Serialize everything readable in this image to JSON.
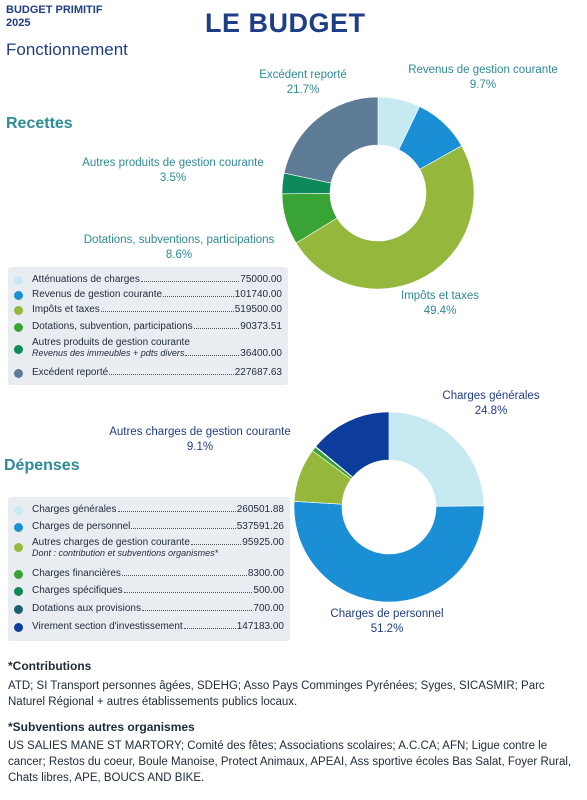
{
  "header": {
    "top_left": "BUDGET PRIMITIF\n2025",
    "subtitle": "Fonctionnement",
    "title": "LE BUDGET"
  },
  "colors": {
    "light_cyan": "#c7e9f2",
    "blue": "#1a8fd6",
    "olive_green": "#95b83c",
    "green": "#3aa335",
    "teal_green": "#0c8a5a",
    "slate": "#5f7c96",
    "dark_teal": "#1f5e6e",
    "navy": "#0c3c9c",
    "section_title": "#2e8b97"
  },
  "recettes": {
    "title": "Recettes",
    "labels": {
      "excedent": [
        "Excédent reporté",
        "21.7%"
      ],
      "revenus": [
        "Revenus de gestion courante",
        "9.7%"
      ],
      "autres": [
        "Autres produits de gestion courante",
        "3.5%"
      ],
      "dotations": [
        "Dotations, subventions, participations",
        "8.6%"
      ],
      "impots": [
        "Impôts et taxes",
        "49.4%"
      ]
    },
    "legend": [
      {
        "label": "Atténuations de charges",
        "sub": "",
        "value": "75000.00",
        "color": "#c7e9f2"
      },
      {
        "label": "Revenus de gestion courante",
        "sub": "",
        "value": "101740.00",
        "color": "#1a8fd6"
      },
      {
        "label": "Impôts et taxes",
        "sub": "",
        "value": "519500.00",
        "color": "#95b83c"
      },
      {
        "label": "Dotations, subvention, participations",
        "sub": "",
        "value": "90373.51",
        "color": "#3aa335"
      },
      {
        "label": "Autres produits de gestion courante",
        "sub": "Revenus des immeubles + pdts divers",
        "value": "36400.00",
        "color": "#0c8a5a"
      },
      {
        "label": "Excédent reporté",
        "sub": "",
        "value": "227687.63",
        "color": "#5f7c96"
      }
    ]
  },
  "depenses": {
    "title": "Dépenses",
    "labels": {
      "generales": [
        "Charges générales",
        "24.8%"
      ],
      "autres": [
        "Autres charges de gestion courante",
        "9.1%"
      ],
      "personnel": [
        "Charges de personnel",
        "51.2%"
      ]
    },
    "legend": [
      {
        "label": "Charges générales",
        "sub": "",
        "value": "260501.88",
        "color": "#c7e9f2"
      },
      {
        "label": "Charges de personnel",
        "sub": "",
        "value": "537591.26",
        "color": "#1a8fd6"
      },
      {
        "label": "Autres charges de gestion courante",
        "sub": "Dont : contribution et subventions organismes*",
        "value": "95925.00",
        "color": "#95b83c"
      },
      {
        "label": "Charges financières",
        "sub": "",
        "value": "8300.00",
        "color": "#3aa335"
      },
      {
        "label": "Charges spécifiques",
        "sub": "",
        "value": "500.00",
        "color": "#0c8a5a"
      },
      {
        "label": "Dotations aux provisions",
        "sub": "",
        "value": "700.00",
        "color": "#1f5e6e"
      },
      {
        "label": "Virement section d'investissement",
        "sub": "",
        "value": "147183.00",
        "color": "#0c3c9c"
      }
    ]
  },
  "chart_data": [
    {
      "type": "pie",
      "title": "Recettes",
      "categories": [
        "Atténuations de charges",
        "Revenus de gestion courante",
        "Impôts et taxes",
        "Dotations, subvention, participations",
        "Autres produits de gestion courante",
        "Excédent reporté"
      ],
      "values": [
        75000.0,
        101740.0,
        519500.0,
        90373.51,
        36400.0,
        227687.63
      ],
      "colors": [
        "#c7e9f2",
        "#1a8fd6",
        "#95b83c",
        "#3aa335",
        "#0c8a5a",
        "#5f7c96"
      ],
      "donut": true
    },
    {
      "type": "pie",
      "title": "Dépenses",
      "categories": [
        "Charges générales",
        "Charges de personnel",
        "Autres charges de gestion courante",
        "Charges financières",
        "Charges spécifiques",
        "Dotations aux provisions",
        "Virement section d'investissement"
      ],
      "values": [
        260501.88,
        537591.26,
        95925.0,
        8300.0,
        500.0,
        700.0,
        147183.0
      ],
      "colors": [
        "#c7e9f2",
        "#1a8fd6",
        "#95b83c",
        "#3aa335",
        "#0c8a5a",
        "#1f5e6e",
        "#0c3c9c"
      ],
      "donut": true
    }
  ],
  "footer": {
    "contrib_title": "*Contributions",
    "contrib_text": "ATD; SI Transport personnes âgées, SDEHG; Asso Pays Comminges Pyrénées; Syges, SICASMIR; Parc Naturel Régional + autres établissements publics locaux.",
    "subv_title": "*Subventions autres organismes",
    "subv_text": "US SALIES MANE ST MARTORY; Comité des fêtes; Associations scolaires; A.C.CA; AFN; Ligue contre le cancer; Restos du coeur, Boule Manoise, Protect Animaux, APEAI, Ass sportive écoles Bas Salat, Foyer Rural, Chats libres, APE, BOUCS AND BIKE."
  }
}
